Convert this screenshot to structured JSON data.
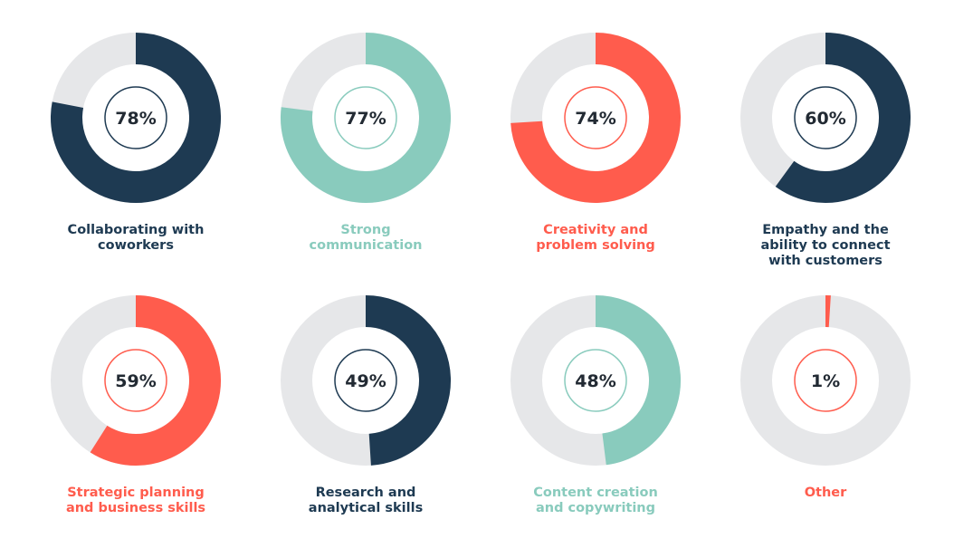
{
  "colors": {
    "navy": "#1e3a52",
    "teal": "#89cbbd",
    "coral": "#ff5c4d",
    "track": "#e6e7e9",
    "value_text": "#222a33"
  },
  "chart_data": {
    "type": "donut",
    "items": [
      {
        "label": "Collaborating with\ncoworkers",
        "value": 78,
        "display": "78%",
        "color": "#1e3a52"
      },
      {
        "label": "Strong\ncommunication",
        "value": 77,
        "display": "77%",
        "color": "#89cbbd"
      },
      {
        "label": "Creativity and\nproblem solving",
        "value": 74,
        "display": "74%",
        "color": "#ff5c4d"
      },
      {
        "label": "Empathy and the\nability to connect\nwith customers",
        "value": 60,
        "display": "60%",
        "color": "#1e3a52"
      },
      {
        "label": "Strategic planning\nand business skills",
        "value": 59,
        "display": "59%",
        "color": "#ff5c4d"
      },
      {
        "label": "Research and\nanalytical skills",
        "value": 49,
        "display": "49%",
        "color": "#1e3a52"
      },
      {
        "label": "Content creation\nand copywriting",
        "value": 48,
        "display": "48%",
        "color": "#89cbbd"
      },
      {
        "label": "Other",
        "value": 1,
        "display": "1%",
        "color": "#ff5c4d"
      }
    ]
  }
}
